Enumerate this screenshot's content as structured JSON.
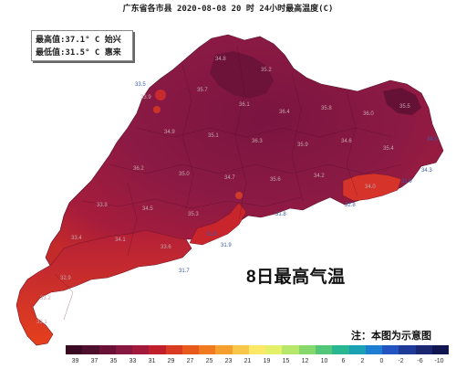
{
  "title": "广东省各市县 2020-08-08 20 时 24小时最高温度(C)",
  "stats": {
    "max_label": "最高值:",
    "max_value": "37.1° C",
    "max_city": "始兴",
    "min_label": "最低值:",
    "min_value": "31.5° C",
    "min_city": "惠来"
  },
  "headline": "8日最高气温",
  "note": "注：本图为示意图",
  "legend": {
    "colors": [
      "#3a0a22",
      "#4e0f2c",
      "#6a1235",
      "#861840",
      "#a2193c",
      "#c01f2c",
      "#d83a22",
      "#e85a1c",
      "#f07a20",
      "#f5a02e",
      "#f8c648",
      "#fae866",
      "#e4f06a",
      "#b6e66a",
      "#86d86c",
      "#54c67a",
      "#2ab690",
      "#1aa2b4",
      "#1e7ed2",
      "#2454c2",
      "#203a9a",
      "#1a2670",
      "#121650"
    ],
    "ticks": [
      "39",
      "37",
      "35",
      "33",
      "31",
      "29",
      "27",
      "25",
      "23",
      "21",
      "19",
      "15",
      "12",
      "10",
      "6",
      "2",
      "0",
      "-2",
      "-6",
      "-10"
    ]
  },
  "map_labels": [
    "33.9",
    "34.8",
    "35.2",
    "35.7",
    "36.1",
    "36.4",
    "35.8",
    "36.0",
    "35.5",
    "34.9",
    "35.1",
    "36.3",
    "35.9",
    "34.6",
    "35.4",
    "36.2",
    "35.0",
    "34.7",
    "35.6",
    "34.2",
    "33.8",
    "34.5",
    "35.3",
    "33.4",
    "34.1",
    "33.6",
    "32.9",
    "33.2",
    "34.0",
    "33.1"
  ],
  "coast_labels": [
    "33.5",
    "34.3",
    "34.5",
    "31.9",
    "32.8",
    "31.7",
    "31.8",
    "31.9",
    "31.8"
  ]
}
